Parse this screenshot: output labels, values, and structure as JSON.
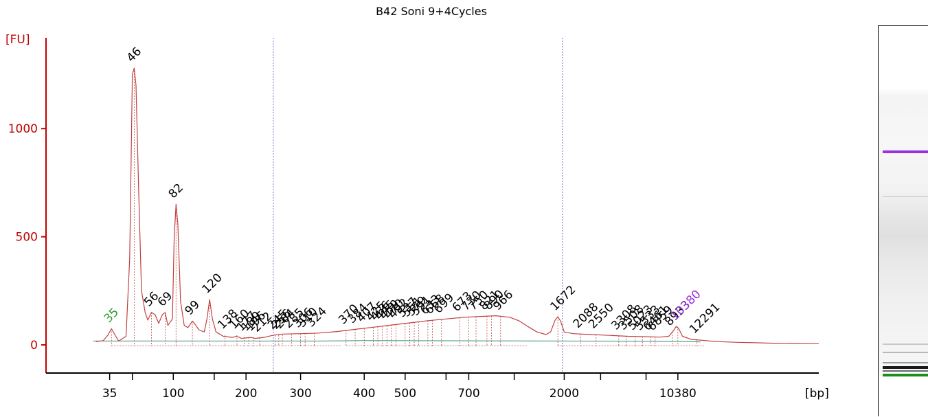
{
  "chart_data": {
    "type": "line",
    "title": "B42 Soni 9+4Cycles",
    "y_unit": "[FU]",
    "x_unit": "[bp]",
    "ylim": [
      -130,
      1420
    ],
    "y_ticks": [
      0,
      500,
      1000
    ],
    "x_axis_min_s": 28,
    "x_axis_max_s": 113,
    "x_ticks": [
      {
        "label": "35",
        "s": 35
      },
      {
        "label": "",
        "s": 37.5
      },
      {
        "label": "100",
        "s": 42
      },
      {
        "label": "",
        "s": 46.5
      },
      {
        "label": "200",
        "s": 50
      },
      {
        "label": "300",
        "s": 56
      },
      {
        "label": "400",
        "s": 63
      },
      {
        "label": "500",
        "s": 67.5
      },
      {
        "label": "",
        "s": 72
      },
      {
        "label": "700",
        "s": 74.5
      },
      {
        "label": "",
        "s": 79.5
      },
      {
        "label": "2000",
        "s": 85
      },
      {
        "label": "",
        "s": 89
      },
      {
        "label": "",
        "s": 94
      },
      {
        "label": "10380",
        "s": 97.5
      }
    ],
    "markers_s": [
      53,
      84.8
    ],
    "trace": [
      [
        33.5,
        15
      ],
      [
        34.3,
        20
      ],
      [
        34.8,
        45
      ],
      [
        35.2,
        75
      ],
      [
        35.6,
        45
      ],
      [
        36.0,
        18
      ],
      [
        36.8,
        40
      ],
      [
        37.2,
        400
      ],
      [
        37.5,
        1250
      ],
      [
        37.7,
        1280
      ],
      [
        37.9,
        1200
      ],
      [
        38.2,
        700
      ],
      [
        38.5,
        250
      ],
      [
        38.9,
        150
      ],
      [
        39.2,
        115
      ],
      [
        39.6,
        150
      ],
      [
        40.0,
        140
      ],
      [
        40.4,
        100
      ],
      [
        40.8,
        140
      ],
      [
        41.1,
        150
      ],
      [
        41.4,
        90
      ],
      [
        41.9,
        120
      ],
      [
        42.1,
        500
      ],
      [
        42.3,
        650
      ],
      [
        42.5,
        560
      ],
      [
        42.8,
        200
      ],
      [
        43.2,
        90
      ],
      [
        43.6,
        80
      ],
      [
        44.1,
        110
      ],
      [
        44.4,
        95
      ],
      [
        44.8,
        70
      ],
      [
        45.4,
        60
      ],
      [
        45.7,
        120
      ],
      [
        46.0,
        210
      ],
      [
        46.3,
        120
      ],
      [
        46.7,
        60
      ],
      [
        47.5,
        40
      ],
      [
        48.5,
        35
      ],
      [
        49.0,
        40
      ],
      [
        49.5,
        30
      ],
      [
        50.5,
        35
      ],
      [
        51.0,
        30
      ],
      [
        52.0,
        35
      ],
      [
        53.0,
        45
      ],
      [
        54.0,
        50
      ],
      [
        56.0,
        52
      ],
      [
        58.0,
        55
      ],
      [
        60.0,
        62
      ],
      [
        62.0,
        72
      ],
      [
        64.0,
        82
      ],
      [
        66.0,
        92
      ],
      [
        68.0,
        102
      ],
      [
        70.0,
        112
      ],
      [
        72.0,
        120
      ],
      [
        74.0,
        128
      ],
      [
        76.0,
        132
      ],
      [
        77.5,
        135
      ],
      [
        79.0,
        128
      ],
      [
        80.0,
        112
      ],
      [
        81.0,
        85
      ],
      [
        82.0,
        60
      ],
      [
        83.0,
        48
      ],
      [
        83.5,
        60
      ],
      [
        84.0,
        115
      ],
      [
        84.3,
        130
      ],
      [
        84.6,
        110
      ],
      [
        85.0,
        60
      ],
      [
        86.0,
        52
      ],
      [
        88.0,
        48
      ],
      [
        90.0,
        44
      ],
      [
        92.0,
        40
      ],
      [
        94.0,
        38
      ],
      [
        95.5,
        36
      ],
      [
        96.5,
        40
      ],
      [
        97.0,
        65
      ],
      [
        97.3,
        85
      ],
      [
        97.6,
        75
      ],
      [
        98.0,
        40
      ],
      [
        99.0,
        25
      ],
      [
        100.0,
        22
      ],
      [
        101.0,
        18
      ],
      [
        102.0,
        15
      ],
      [
        104.0,
        12
      ],
      [
        106.0,
        10
      ],
      [
        108.0,
        8
      ],
      [
        110.0,
        7
      ],
      [
        112.0,
        6
      ],
      [
        113.0,
        6
      ]
    ],
    "baseline": [
      [
        33.2,
        18
      ],
      [
        58.0,
        18
      ],
      [
        63.0,
        20
      ],
      [
        85.0,
        18
      ],
      [
        98.0,
        16
      ],
      [
        100.0,
        14
      ]
    ],
    "peaks": [
      {
        "label": "35",
        "s": 35.2,
        "y": 75,
        "color": "#2a9a2a"
      },
      {
        "label": "46",
        "s": 37.7,
        "y": 1280,
        "color": "#000000"
      },
      {
        "label": "56",
        "s": 39.6,
        "y": 150,
        "color": "#000000"
      },
      {
        "label": "69",
        "s": 41.1,
        "y": 150,
        "color": "#000000"
      },
      {
        "label": "82",
        "s": 42.3,
        "y": 650,
        "color": "#000000"
      },
      {
        "label": "99",
        "s": 44.1,
        "y": 110,
        "color": "#000000"
      },
      {
        "label": "120",
        "s": 46.0,
        "y": 210,
        "color": "#000000"
      },
      {
        "label": "138",
        "s": 47.7,
        "y": 45,
        "color": "#000000"
      },
      {
        "label": "160",
        "s": 49.0,
        "y": 45,
        "color": "#000000"
      },
      {
        "label": "177",
        "s": 49.8,
        "y": 35,
        "color": "#000000"
      },
      {
        "label": "189",
        "s": 50.3,
        "y": 35,
        "color": "#000000"
      },
      {
        "label": "196",
        "s": 50.8,
        "y": 35,
        "color": "#000000"
      },
      {
        "label": "212",
        "s": 51.5,
        "y": 32,
        "color": "#000000"
      },
      {
        "label": "245",
        "s": 53.2,
        "y": 44,
        "color": "#000000"
      },
      {
        "label": "256",
        "s": 53.6,
        "y": 45,
        "color": "#000000"
      },
      {
        "label": "264",
        "s": 54.0,
        "y": 47,
        "color": "#000000"
      },
      {
        "label": "285",
        "s": 55.0,
        "y": 50,
        "color": "#000000"
      },
      {
        "label": "306",
        "s": 56.0,
        "y": 52,
        "color": "#000000"
      },
      {
        "label": "310",
        "s": 56.5,
        "y": 53,
        "color": "#000000"
      },
      {
        "label": "324",
        "s": 57.5,
        "y": 55,
        "color": "#000000"
      },
      {
        "label": "370",
        "s": 61.0,
        "y": 68,
        "color": "#000000"
      },
      {
        "label": "384",
        "s": 62.0,
        "y": 72,
        "color": "#000000"
      },
      {
        "label": "407",
        "s": 63.0,
        "y": 77,
        "color": "#000000"
      },
      {
        "label": "425",
        "s": 64.0,
        "y": 82,
        "color": "#000000"
      },
      {
        "label": "436",
        "s": 64.5,
        "y": 84,
        "color": "#000000"
      },
      {
        "label": "445",
        "s": 65.0,
        "y": 87,
        "color": "#000000"
      },
      {
        "label": "459",
        "s": 65.5,
        "y": 89,
        "color": "#000000"
      },
      {
        "label": "470",
        "s": 66.0,
        "y": 92,
        "color": "#000000"
      },
      {
        "label": "492",
        "s": 66.5,
        "y": 94,
        "color": "#000000"
      },
      {
        "label": "537",
        "s": 67.5,
        "y": 100,
        "color": "#000000"
      },
      {
        "label": "551",
        "s": 68.0,
        "y": 102,
        "color": "#000000"
      },
      {
        "label": "579",
        "s": 68.5,
        "y": 105,
        "color": "#000000"
      },
      {
        "label": "591",
        "s": 69.0,
        "y": 107,
        "color": "#000000"
      },
      {
        "label": "633",
        "s": 70.0,
        "y": 112,
        "color": "#000000"
      },
      {
        "label": "668",
        "s": 70.5,
        "y": 114,
        "color": "#000000"
      },
      {
        "label": "699",
        "s": 71.5,
        "y": 118,
        "color": "#000000"
      },
      {
        "label": "673",
        "s": 73.5,
        "y": 126,
        "color": "#000000"
      },
      {
        "label": "730",
        "s": 74.5,
        "y": 130,
        "color": "#000000"
      },
      {
        "label": "750",
        "s": 75.3,
        "y": 131,
        "color": "#000000"
      },
      {
        "label": "821",
        "s": 76.5,
        "y": 133,
        "color": "#000000"
      },
      {
        "label": "890",
        "s": 77.0,
        "y": 134,
        "color": "#000000"
      },
      {
        "label": "966",
        "s": 78.0,
        "y": 132,
        "color": "#000000"
      },
      {
        "label": "1672",
        "s": 84.3,
        "y": 130,
        "color": "#000000"
      },
      {
        "label": "2088",
        "s": 86.8,
        "y": 50,
        "color": "#000000"
      },
      {
        "label": "2550",
        "s": 88.5,
        "y": 48,
        "color": "#000000"
      },
      {
        "label": "3308",
        "s": 91.0,
        "y": 42,
        "color": "#000000"
      },
      {
        "label": "3508",
        "s": 91.8,
        "y": 41,
        "color": "#000000"
      },
      {
        "label": "5023",
        "s": 92.8,
        "y": 40,
        "color": "#000000"
      },
      {
        "label": "5533",
        "s": 93.6,
        "y": 39,
        "color": "#000000"
      },
      {
        "label": "6461",
        "s": 94.5,
        "y": 38,
        "color": "#000000"
      },
      {
        "label": "6859",
        "s": 95.0,
        "y": 37,
        "color": "#000000"
      },
      {
        "label": "8933",
        "s": 96.9,
        "y": 60,
        "color": "#000000"
      },
      {
        "label": "10380",
        "s": 97.5,
        "y": 85,
        "color": "#9b30e0"
      },
      {
        "label": "12291",
        "s": 99.6,
        "y": 25,
        "color": "#000000"
      }
    ],
    "gel_bands": [
      {
        "pos": 0.318,
        "color": "#9b30e0",
        "weight": 4
      },
      {
        "pos": 0.435,
        "color": "#d6d6d6",
        "weight": 2
      },
      {
        "pos": 0.813,
        "color": "#c8c8c8",
        "weight": 2
      },
      {
        "pos": 0.835,
        "color": "#b8b8b8",
        "weight": 2
      },
      {
        "pos": 0.86,
        "color": "#9a9a9a",
        "weight": 2
      },
      {
        "pos": 0.872,
        "color": "#1a1a1a",
        "weight": 4
      },
      {
        "pos": 0.882,
        "color": "#666666",
        "weight": 2
      },
      {
        "pos": 0.89,
        "color": "#1c8c1c",
        "weight": 4
      }
    ],
    "grid": false,
    "legend": "none"
  }
}
